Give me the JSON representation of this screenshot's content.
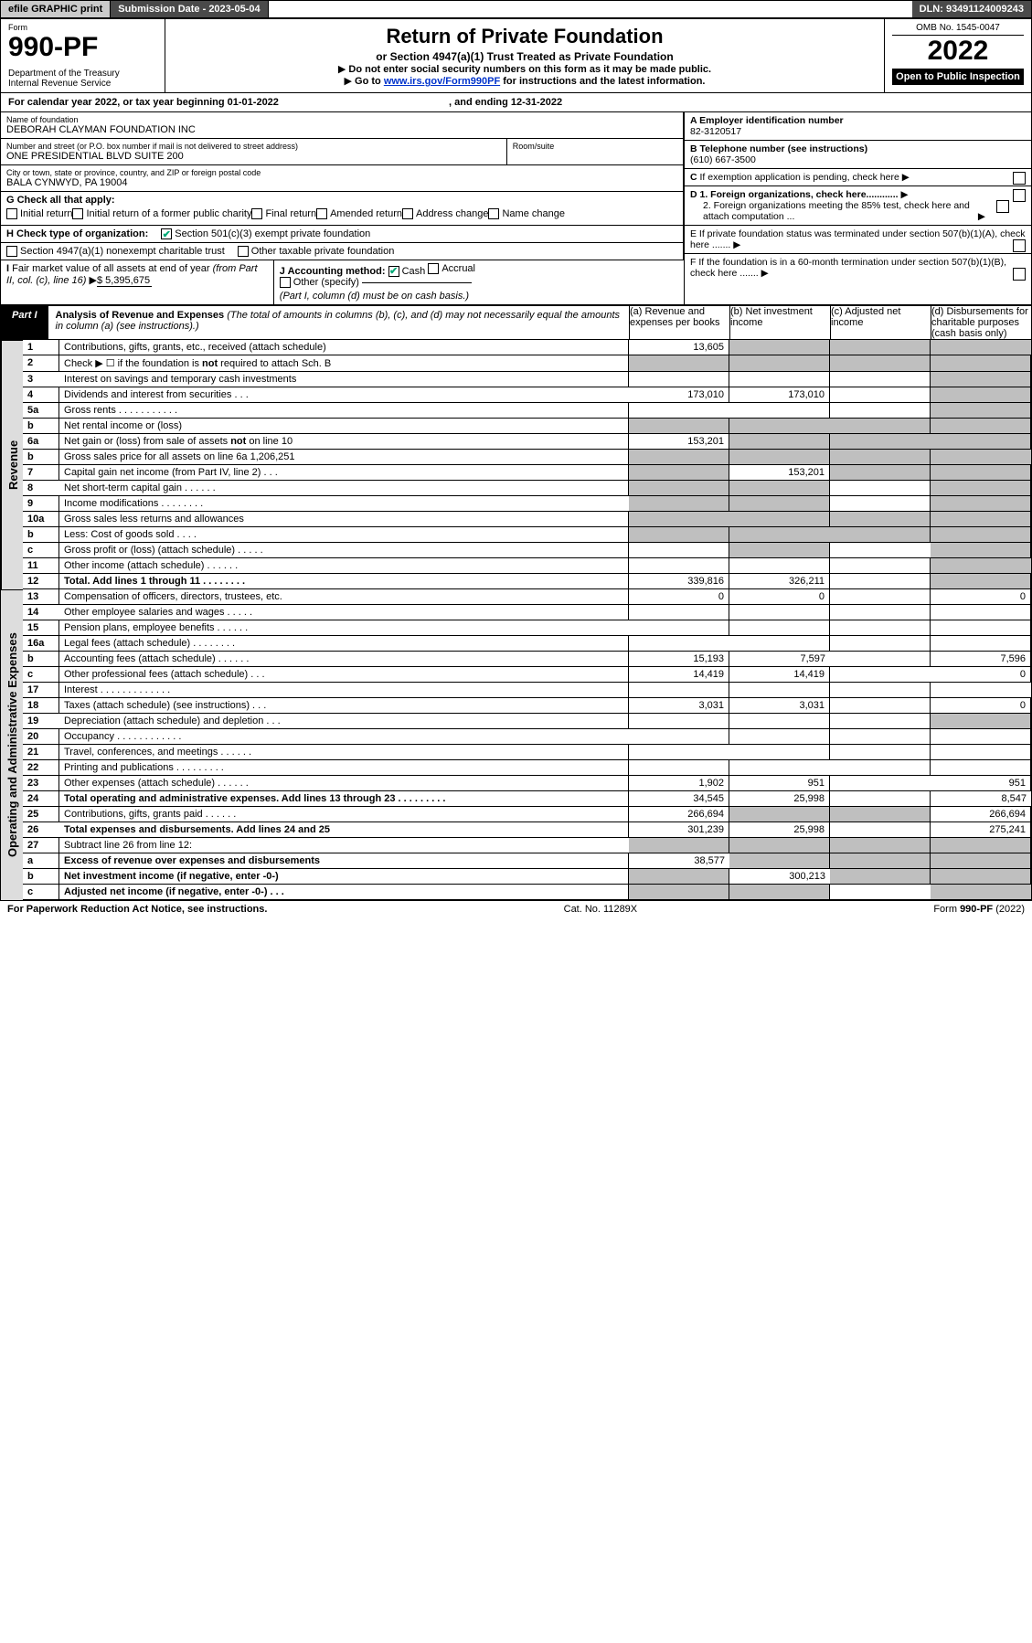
{
  "topbar": {
    "efile": "efile GRAPHIC print",
    "subdate": "Submission Date - 2023-05-04",
    "dln": "DLN: 93491124009243"
  },
  "header": {
    "form_label": "Form",
    "form_no": "990-PF",
    "dept": "Department of the Treasury",
    "irs": "Internal Revenue Service",
    "title": "Return of Private Foundation",
    "subtitle": "or Section 4947(a)(1) Trust Treated as Private Foundation",
    "instr1": "Do not enter social security numbers on this form as it may be made public.",
    "instr2_pre": "Go to ",
    "instr2_link": "www.irs.gov/Form990PF",
    "instr2_post": " for instructions and the latest information.",
    "omb": "OMB No. 1545-0047",
    "year": "2022",
    "open": "Open to Public Inspection"
  },
  "cy": {
    "line": "For calendar year 2022, or tax year beginning 01-01-2022",
    "ending": ", and ending 12-31-2022"
  },
  "name_block": {
    "name_lbl": "Name of foundation",
    "name": "DEBORAH CLAYMAN FOUNDATION INC",
    "addr_lbl": "Number and street (or P.O. box number if mail is not delivered to street address)",
    "addr": "ONE PRESIDENTIAL BLVD SUITE 200",
    "room_lbl": "Room/suite",
    "city_lbl": "City or town, state or province, country, and ZIP or foreign postal code",
    "city": "BALA CYNWYD, PA  19004"
  },
  "rcol": {
    "a_lbl": "A Employer identification number",
    "a_val": "82-3120517",
    "b_lbl": "B Telephone number (see instructions)",
    "b_val": "(610) 667-3500",
    "c_lbl": "C If exemption application is pending, check here",
    "d1": "D 1. Foreign organizations, check here............",
    "d2": "2. Foreign organizations meeting the 85% test, check here and attach computation ...",
    "e": "E  If private foundation status was terminated under section 507(b)(1)(A), check here .......",
    "f": "F  If the foundation is in a 60-month termination under section 507(b)(1)(B), check here .......",
    "g": "G Check all that apply:",
    "g_opts": [
      "Initial return",
      "Initial return of a former public charity",
      "Final return",
      "Amended return",
      "Address change",
      "Name change"
    ],
    "h": "H Check type of organization:",
    "h1": "Section 501(c)(3) exempt private foundation",
    "h2": "Section 4947(a)(1) nonexempt charitable trust",
    "h3": "Other taxable private foundation",
    "i_lbl": "I Fair market value of all assets at end of year (from Part II, col. (c), line 16)",
    "i_val": "$  5,395,675",
    "j_lbl": "J Accounting method:",
    "j_cash": "Cash",
    "j_accr": "Accrual",
    "j_other": "Other (specify)",
    "j_note": "(Part I, column (d) must be on cash basis.)"
  },
  "part1": {
    "tag": "Part I",
    "title": "Analysis of Revenue and Expenses",
    "paren": " (The total of amounts in columns (b), (c), and (d) may not necessarily equal the amounts in column (a) (see instructions).)",
    "ca": "(a)  Revenue and expenses per books",
    "cb": "(b)  Net investment income",
    "cc": "(c)  Adjusted net income",
    "cd": "(d)  Disbursements for charitable purposes (cash basis only)"
  },
  "sides": {
    "rev": "Revenue",
    "oae": "Operating and Administrative Expenses"
  },
  "rows": [
    {
      "n": "1",
      "t": "Contributions, gifts, grants, etc., received (attach schedule)",
      "a": "13,605",
      "b": "",
      "c": "",
      "d": "",
      "sb": true,
      "sc": true,
      "sd": true
    },
    {
      "n": "2",
      "t": "Check ▶ ☐ if the foundation is not required to attach Sch. B",
      "a": "",
      "b": "",
      "c": "",
      "d": "",
      "sa": true,
      "sb": true,
      "sc": true,
      "sd": true
    },
    {
      "n": "3",
      "t": "Interest on savings and temporary cash investments",
      "a": "",
      "b": "",
      "c": "",
      "d": "",
      "sd": true
    },
    {
      "n": "4",
      "t": "Dividends and interest from securities   .   .   .",
      "a": "173,010",
      "b": "173,010",
      "c": "",
      "d": "",
      "sd": true
    },
    {
      "n": "5a",
      "t": "Gross rents   .   .   .   .   .   .   .   .   .   .   .",
      "a": "",
      "b": "",
      "c": "",
      "d": "",
      "sd": true
    },
    {
      "n": "b",
      "t": "Net rental income or (loss)  ",
      "a": "",
      "b": "",
      "c": "",
      "d": "",
      "sa": true,
      "sb": true,
      "sc": true,
      "sd": true
    },
    {
      "n": "6a",
      "t": "Net gain or (loss) from sale of assets not on line 10",
      "a": "153,201",
      "b": "",
      "c": "",
      "d": "",
      "sb": true,
      "sc": true,
      "sd": true
    },
    {
      "n": "b",
      "t": "Gross sales price for all assets on line 6a            1,206,251",
      "a": "",
      "b": "",
      "c": "",
      "d": "",
      "sa": true,
      "sb": true,
      "sc": true,
      "sd": true
    },
    {
      "n": "7",
      "t": "Capital gain net income (from Part IV, line 2)   .   .   .",
      "a": "",
      "b": "153,201",
      "c": "",
      "d": "",
      "sa": true,
      "sc": true,
      "sd": true
    },
    {
      "n": "8",
      "t": "Net short-term capital gain   .   .   .   .   .   .",
      "a": "",
      "b": "",
      "c": "",
      "d": "",
      "sa": true,
      "sb": true,
      "sd": true
    },
    {
      "n": "9",
      "t": "Income modifications   .   .   .   .   .   .   .   .",
      "a": "",
      "b": "",
      "c": "",
      "d": "",
      "sa": true,
      "sb": true,
      "sd": true
    },
    {
      "n": "10a",
      "t": "Gross sales less returns and allowances",
      "a": "",
      "b": "",
      "c": "",
      "d": "",
      "sa": true,
      "sb": true,
      "sc": true,
      "sd": true
    },
    {
      "n": "b",
      "t": "Less: Cost of goods sold   .   .   .   .",
      "a": "",
      "b": "",
      "c": "",
      "d": "",
      "sa": true,
      "sb": true,
      "sc": true,
      "sd": true
    },
    {
      "n": "c",
      "t": "Gross profit or (loss) (attach schedule)   .   .   .   .   .",
      "a": "",
      "b": "",
      "c": "",
      "d": "",
      "sb": true,
      "sd": true
    },
    {
      "n": "11",
      "t": "Other income (attach schedule)   .   .   .   .   .   .",
      "a": "",
      "b": "",
      "c": "",
      "d": "",
      "sd": true
    },
    {
      "n": "12",
      "t": "Total. Add lines 1 through 11   .   .   .   .   .   .   .   .",
      "a": "339,816",
      "b": "326,211",
      "c": "",
      "d": "",
      "bold": true,
      "sd": true
    },
    {
      "n": "13",
      "t": "Compensation of officers, directors, trustees, etc.",
      "a": "0",
      "b": "0",
      "c": "",
      "d": "0"
    },
    {
      "n": "14",
      "t": "Other employee salaries and wages   .   .   .   .   .",
      "a": "",
      "b": "",
      "c": "",
      "d": ""
    },
    {
      "n": "15",
      "t": "Pension plans, employee benefits   .   .   .   .   .   .",
      "a": "",
      "b": "",
      "c": "",
      "d": ""
    },
    {
      "n": "16a",
      "t": "Legal fees (attach schedule)   .   .   .   .   .   .   .   .",
      "a": "",
      "b": "",
      "c": "",
      "d": ""
    },
    {
      "n": "b",
      "t": "Accounting fees (attach schedule)   .   .   .   .   .   .",
      "a": "15,193",
      "b": "7,597",
      "c": "",
      "d": "7,596"
    },
    {
      "n": "c",
      "t": "Other professional fees (attach schedule)   .   .   .",
      "a": "14,419",
      "b": "14,419",
      "c": "",
      "d": "0"
    },
    {
      "n": "17",
      "t": "Interest   .   .   .   .   .   .   .   .   .   .   .   .   .",
      "a": "",
      "b": "",
      "c": "",
      "d": ""
    },
    {
      "n": "18",
      "t": "Taxes (attach schedule) (see instructions)   .   .   .",
      "a": "3,031",
      "b": "3,031",
      "c": "",
      "d": "0"
    },
    {
      "n": "19",
      "t": "Depreciation (attach schedule) and depletion   .   .   .",
      "a": "",
      "b": "",
      "c": "",
      "d": "",
      "sd": true
    },
    {
      "n": "20",
      "t": "Occupancy   .   .   .   .   .   .   .   .   .   .   .   .",
      "a": "",
      "b": "",
      "c": "",
      "d": ""
    },
    {
      "n": "21",
      "t": "Travel, conferences, and meetings   .   .   .   .   .   .",
      "a": "",
      "b": "",
      "c": "",
      "d": ""
    },
    {
      "n": "22",
      "t": "Printing and publications   .   .   .   .   .   .   .   .   .",
      "a": "",
      "b": "",
      "c": "",
      "d": ""
    },
    {
      "n": "23",
      "t": "Other expenses (attach schedule)   .   .   .   .   .   .",
      "a": "1,902",
      "b": "951",
      "c": "",
      "d": "951"
    },
    {
      "n": "24",
      "t": "Total operating and administrative expenses. Add lines 13 through 23   .   .   .   .   .   .   .   .   .",
      "a": "34,545",
      "b": "25,998",
      "c": "",
      "d": "8,547",
      "bold": true
    },
    {
      "n": "25",
      "t": "Contributions, gifts, grants paid   .   .   .   .   .   .",
      "a": "266,694",
      "b": "",
      "c": "",
      "d": "266,694",
      "sb": true,
      "sc": true
    },
    {
      "n": "26",
      "t": "Total expenses and disbursements. Add lines 24 and 25",
      "a": "301,239",
      "b": "25,998",
      "c": "",
      "d": "275,241",
      "bold": true
    },
    {
      "n": "27",
      "t": "Subtract line 26 from line 12:",
      "a": "",
      "b": "",
      "c": "",
      "d": "",
      "sa": true,
      "sb": true,
      "sc": true,
      "sd": true
    },
    {
      "n": "a",
      "t": "Excess of revenue over expenses and disbursements",
      "a": "38,577",
      "b": "",
      "c": "",
      "d": "",
      "bold": true,
      "sb": true,
      "sc": true,
      "sd": true
    },
    {
      "n": "b",
      "t": "Net investment income (if negative, enter -0-)",
      "a": "",
      "b": "300,213",
      "c": "",
      "d": "",
      "bold": true,
      "sa": true,
      "sc": true,
      "sd": true
    },
    {
      "n": "c",
      "t": "Adjusted net income (if negative, enter -0-)   .   .   .",
      "a": "",
      "b": "",
      "c": "",
      "d": "",
      "bold": true,
      "sa": true,
      "sb": true,
      "sd": true
    }
  ],
  "foot": {
    "l": "For Paperwork Reduction Act Notice, see instructions.",
    "c": "Cat. No. 11289X",
    "r": "Form 990-PF (2022)"
  }
}
